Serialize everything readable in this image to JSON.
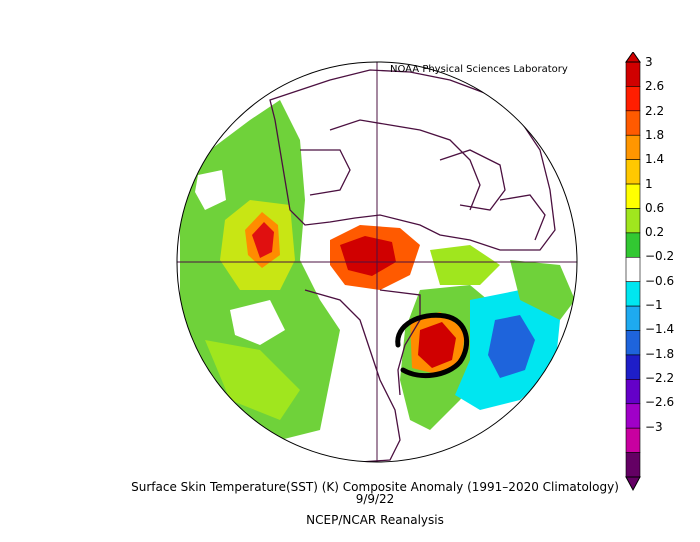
{
  "credit": "NOAA Physical Sciences Laboratory",
  "caption": {
    "line1": "Surface Skin Temperature(SST) (K) Composite Anomaly (1991–2020 Climatology)",
    "line2": "9/9/22",
    "line3": "NCEP/NCAR Reanalysis"
  },
  "colorbar": {
    "labels": [
      "3",
      "2.6",
      "2.2",
      "1.8",
      "1.4",
      "1",
      "0.6",
      "0.2",
      "−0.2",
      "−0.6",
      "−1",
      "−1.4",
      "−1.8",
      "−2.2",
      "−2.6",
      "−3"
    ],
    "colors": [
      "#d00000",
      "#ff1e00",
      "#ff5a00",
      "#ff9600",
      "#ffc800",
      "#ffff00",
      "#a0e61e",
      "#32c832",
      "#ffffff",
      "#00e6f0",
      "#1eaaf0",
      "#1e64dc",
      "#1e1ec8",
      "#6400c8",
      "#a000c8",
      "#c800a0",
      "#640064"
    ]
  },
  "annotation": "black-circle-highlight-over-northwest-atlantic"
}
